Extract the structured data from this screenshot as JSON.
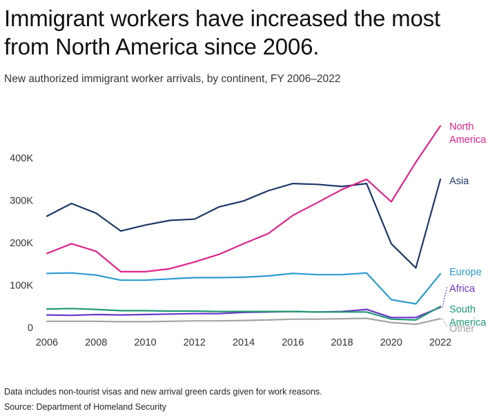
{
  "header": {
    "title": "Immigrant workers have increased the most from North America since 2006.",
    "subtitle": "New authorized immigrant worker arrivals, by continent, FY 2006–2022"
  },
  "footer": {
    "note": "Data includes non-tourist visas and new arrival green cards given for work reasons.",
    "source": "Source: Department of Homeland Security"
  },
  "chart_data": {
    "type": "line",
    "x": [
      2006,
      2007,
      2008,
      2009,
      2010,
      2011,
      2012,
      2013,
      2014,
      2015,
      2016,
      2017,
      2018,
      2019,
      2020,
      2021,
      2022
    ],
    "x_ticks": [
      2006,
      2008,
      2010,
      2012,
      2014,
      2016,
      2018,
      2020,
      2022
    ],
    "x_tick_labels": [
      "2006",
      "2008",
      "2010",
      "2012",
      "2014",
      "2016",
      "2018",
      "2020",
      "2022"
    ],
    "ylim": [
      0,
      480000
    ],
    "y_ticks": [
      0,
      100000,
      200000,
      300000,
      400000
    ],
    "y_tick_labels": [
      "0",
      "100K",
      "200K",
      "300K",
      "400K"
    ],
    "grid": false,
    "legend": "direct labels at right end of lines",
    "series": [
      {
        "name": "North America",
        "label_lines": [
          "North",
          "America"
        ],
        "color": "#e0218a",
        "values": [
          175000,
          198000,
          180000,
          132000,
          132000,
          139000,
          155000,
          173000,
          198000,
          222000,
          265000,
          295000,
          326000,
          350000,
          297000,
          390000,
          476000
        ]
      },
      {
        "name": "Asia",
        "label_lines": [
          "Asia"
        ],
        "color": "#1b3668",
        "values": [
          263000,
          293000,
          270000,
          228000,
          242000,
          253000,
          256000,
          285000,
          299000,
          323000,
          340000,
          338000,
          333000,
          340000,
          198000,
          141000,
          350000
        ]
      },
      {
        "name": "Europe",
        "label_lines": [
          "Europe"
        ],
        "color": "#2a9ad0",
        "values": [
          128000,
          129000,
          124000,
          112000,
          112000,
          115000,
          118000,
          118000,
          119000,
          122000,
          128000,
          125000,
          125000,
          129000,
          66000,
          56000,
          127000
        ]
      },
      {
        "name": "South America",
        "label_lines": [
          "South",
          "America"
        ],
        "color": "#1e9a73",
        "values": [
          44000,
          45000,
          43000,
          40000,
          40000,
          39000,
          39000,
          38000,
          38000,
          38000,
          38000,
          37000,
          37000,
          37000,
          20000,
          18000,
          50000
        ]
      },
      {
        "name": "Africa",
        "label_lines": [
          "Africa"
        ],
        "color": "#6a35c8",
        "values": [
          30000,
          29000,
          31000,
          30000,
          31000,
          32000,
          33000,
          33000,
          36000,
          37000,
          38000,
          37000,
          38000,
          43000,
          24000,
          24000,
          48000
        ]
      },
      {
        "name": "Other",
        "label_lines": [
          "Other"
        ],
        "color": "#a3a3a3",
        "values": [
          15000,
          15000,
          15000,
          14000,
          14000,
          15000,
          16000,
          16000,
          17000,
          18000,
          20000,
          20000,
          21000,
          22000,
          12000,
          8000,
          21000
        ]
      }
    ]
  }
}
